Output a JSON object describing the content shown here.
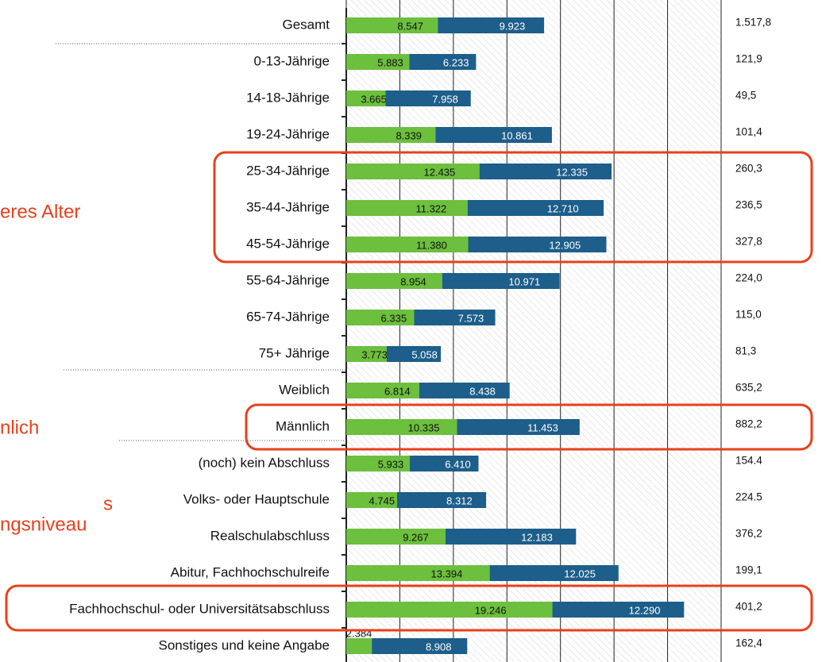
{
  "chart_data": {
    "type": "stacked-bar-horizontal",
    "categories": [
      "Gesamt",
      "0-13-Jährige",
      "14-18-Jährige",
      "19-24-Jährige",
      "25-34-Jährige",
      "35-44-Jährige",
      "45-54-Jährige",
      "55-64-Jährige",
      "65-74-Jährige",
      "75+ Jährige",
      "Weiblich",
      "Männlich",
      "(noch) kein Abschluss",
      "Volks- oder Hauptschule",
      "Realschulabschluss",
      "Abitur, Fachhochschulreife",
      "Fachhochschul- oder Universitätsabschluss",
      "Sonstiges und keine Angabe"
    ],
    "series": [
      {
        "color": "#6dbf3e",
        "values": [
          8547,
          5883,
          3665,
          8339,
          12435,
          11322,
          11380,
          8954,
          6335,
          3773,
          6814,
          10335,
          5933,
          4745,
          9267,
          13394,
          19246,
          2384
        ],
        "value_labels": [
          "8.547",
          "5.883",
          "3.665",
          "8.339",
          "12.435",
          "11.322",
          "11.380",
          "8.954",
          "6.335",
          "3.773",
          "6.814",
          "10.335",
          "5.933",
          "4.745",
          "9.267",
          "13.394",
          "19.246",
          "2.384"
        ]
      },
      {
        "color": "#1d5e8a",
        "values": [
          9923,
          6233,
          7958,
          10861,
          12335,
          12710,
          12905,
          10971,
          7573,
          5058,
          8438,
          11453,
          6410,
          8312,
          12183,
          12025,
          12290,
          8908
        ],
        "value_labels": [
          "9.923",
          "6.233",
          "7.958",
          "10.861",
          "12.335",
          "12.710",
          "12.905",
          "10.971",
          "7.573",
          "5.058",
          "8.438",
          "11.453",
          "6.410",
          "8.312",
          "12.183",
          "12.025",
          "12.290",
          "8.908"
        ]
      }
    ],
    "right_column": [
      "1.517,8",
      "121,9",
      "49,5",
      "101,4",
      "260,3",
      "236,5",
      "327,8",
      "224,0",
      "115,0",
      "81,3",
      "635,2",
      "882,2",
      "154.4",
      "224.5",
      "376,2",
      "199,1",
      "401,2",
      "162,4"
    ],
    "annotations": [
      "eres Alter",
      "nlich",
      "s",
      "ngsniveau"
    ],
    "xlim": [
      0,
      35000
    ],
    "xticks": [
      0,
      5000,
      10000,
      15000,
      20000,
      25000,
      30000,
      35000
    ],
    "grid": true
  }
}
